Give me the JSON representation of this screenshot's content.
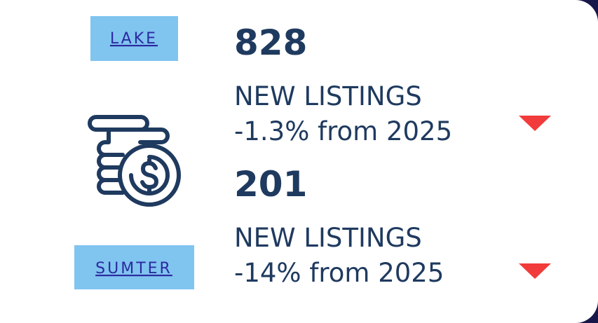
{
  "items": [
    {
      "county": "LAKE",
      "value": "828",
      "label": "NEW LISTINGS",
      "change": "-1.3% from 2025"
    },
    {
      "county": "SUMTER",
      "value": "201",
      "label": "NEW LISTINGS",
      "change": "-14% from 2025"
    }
  ]
}
